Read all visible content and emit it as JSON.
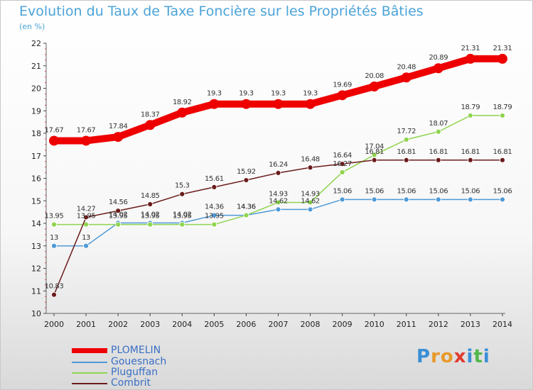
{
  "header": {
    "title": "Evolution du Taux de Taxe Foncière sur les Propriétés Bâties",
    "subtitle": "(en %)"
  },
  "logo": {
    "text": "Proxiti"
  },
  "chart_data": {
    "type": "line",
    "title": "Evolution du Taux de Taxe Foncière sur les Propriétés Bâties",
    "ylabel": "(en %)",
    "xlabel": "",
    "x": [
      "2000",
      "2001",
      "2002",
      "2003",
      "2004",
      "2005",
      "2006",
      "2007",
      "2008",
      "2009",
      "2010",
      "2011",
      "2012",
      "2013",
      "2014"
    ],
    "ylim": [
      10,
      22
    ],
    "yticks": [
      10,
      11,
      12,
      13,
      14,
      15,
      16,
      17,
      18,
      19,
      20,
      21,
      22
    ],
    "grid": false,
    "legend_position": "bottom-left",
    "series": [
      {
        "name": "PLOMELIN",
        "color": "#ee0000",
        "values": [
          17.67,
          17.67,
          17.84,
          18.37,
          18.92,
          19.3,
          19.3,
          19.3,
          19.3,
          19.69,
          20.08,
          20.48,
          20.89,
          21.31,
          21.31
        ],
        "labels": [
          "17.67",
          "17.67",
          "17.84",
          "18.37",
          "18.92",
          "19.3",
          "19.3",
          "19.3",
          "19.3",
          "19.69",
          "20.08",
          "20.48",
          "20.89",
          "21.31",
          "21.31"
        ]
      },
      {
        "name": "Gouesnach",
        "color": "#4f9ad6",
        "values": [
          13,
          13,
          14.02,
          14.02,
          14.02,
          14.36,
          14.36,
          14.62,
          14.62,
          15.06,
          15.06,
          15.06,
          15.06,
          15.06,
          15.06
        ],
        "labels": [
          "13",
          "13",
          "14.02",
          "14.02",
          "14.02",
          "14.36",
          "14.36",
          "14.62",
          "14.62",
          "15.06",
          "15.06",
          "15.06",
          "15.06",
          "15.06",
          "15.06"
        ]
      },
      {
        "name": "Pluguffan",
        "color": "#8fd44f",
        "values": [
          13.95,
          13.95,
          13.95,
          13.95,
          13.95,
          13.95,
          14.36,
          14.93,
          14.93,
          16.27,
          17.04,
          17.72,
          18.07,
          18.79,
          18.79
        ],
        "labels": [
          "13.95",
          "13.95",
          "13.95",
          "13.95",
          "13.95",
          "13.95",
          "14.36",
          "14.93",
          "14.93",
          "16.27",
          "17.04",
          "17.72",
          "18.07",
          "18.79",
          "18.79"
        ]
      },
      {
        "name": "Combrit",
        "color": "#6b1c1c",
        "values": [
          10.83,
          14.27,
          14.56,
          14.85,
          15.3,
          15.61,
          15.92,
          16.24,
          16.48,
          16.64,
          16.81,
          16.81,
          16.81,
          16.81,
          16.81
        ],
        "labels": [
          "10.83",
          "14.27",
          "14.56",
          "14.85",
          "15.3",
          "15.61",
          "15.92",
          "16.24",
          "16.48",
          "16.64",
          "16.81",
          "16.81",
          "16.81",
          "16.81",
          "16.81"
        ]
      }
    ]
  }
}
